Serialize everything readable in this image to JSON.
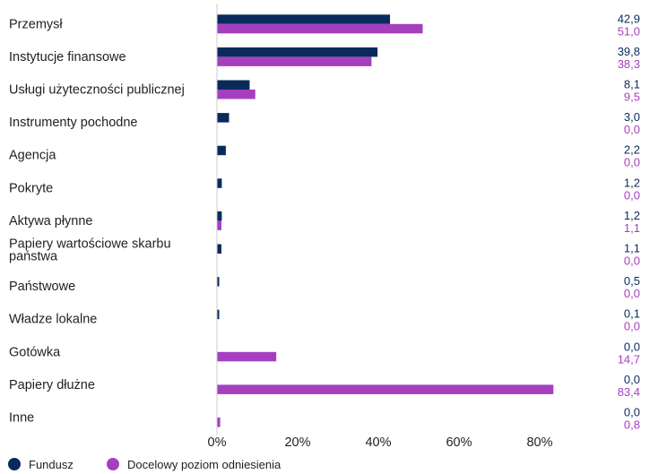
{
  "chart_data": {
    "type": "bar",
    "orientation": "horizontal",
    "categories": [
      "Przemysł",
      "Instytucje finansowe",
      "Usługi użyteczności publicznej",
      "Instrumenty pochodne",
      "Agencja",
      "Pokryte",
      "Aktywa płynne",
      "Papiery wartościowe skarbu państwa",
      "Państwowe",
      "Władze lokalne",
      "Gotówka",
      "Papiery dłużne",
      "Inne"
    ],
    "series": [
      {
        "name": "Fundusz",
        "color": "#0b2a5c",
        "values": [
          42.9,
          39.8,
          8.1,
          3.0,
          2.2,
          1.2,
          1.2,
          1.1,
          0.5,
          0.1,
          0.0,
          0.0,
          0.0
        ],
        "labels": [
          "42,9",
          "39,8",
          "8,1",
          "3,0",
          "2,2",
          "1,2",
          "1,2",
          "1,1",
          "0,5",
          "0,1",
          "0,0",
          "0,0",
          "0,0"
        ]
      },
      {
        "name": "Docelowy poziom odniesienia",
        "color": "#a53fbf",
        "values": [
          51.0,
          38.3,
          9.5,
          0.0,
          0.0,
          0.0,
          1.1,
          0.0,
          0.0,
          0.0,
          14.7,
          83.4,
          0.8
        ],
        "labels": [
          "51,0",
          "38,3",
          "9,5",
          "0,0",
          "0,0",
          "0,0",
          "1,1",
          "0,0",
          "0,0",
          "0,0",
          "14,7",
          "83,4",
          "0,8"
        ]
      }
    ],
    "xlim": [
      0,
      100
    ],
    "xticks": [
      0,
      20,
      40,
      60,
      80
    ],
    "xtick_labels": [
      "0%",
      "20%",
      "40%",
      "60%",
      "80%"
    ],
    "title": "",
    "xlabel": "",
    "ylabel": "",
    "grid": false,
    "legend_position": "bottom-left"
  }
}
